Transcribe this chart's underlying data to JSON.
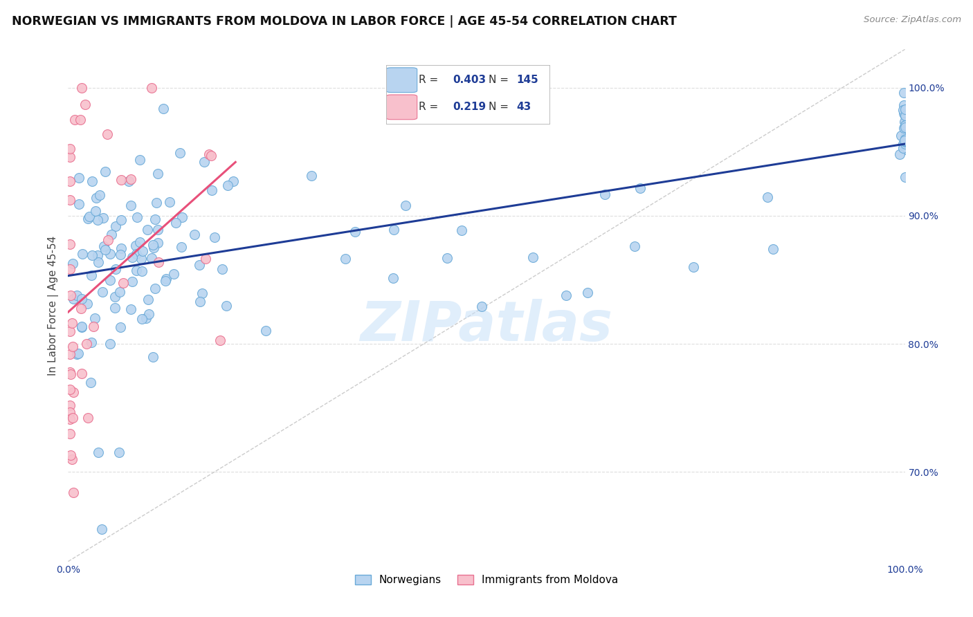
{
  "title": "NORWEGIAN VS IMMIGRANTS FROM MOLDOVA IN LABOR FORCE | AGE 45-54 CORRELATION CHART",
  "source": "Source: ZipAtlas.com",
  "ylabel": "In Labor Force | Age 45-54",
  "blue_R": 0.403,
  "blue_N": 145,
  "pink_R": 0.219,
  "pink_N": 43,
  "blue_color": "#b8d4f0",
  "blue_edge_color": "#6aaad8",
  "blue_line_color": "#1e3c96",
  "pink_color": "#f8c0cc",
  "pink_edge_color": "#e87090",
  "pink_line_color": "#e8507a",
  "legend_color": "#1e3c96",
  "watermark": "ZIPatlas",
  "background_color": "#ffffff",
  "grid_color": "#dddddd",
  "xmin": 0.0,
  "xmax": 1.0,
  "ymin": 0.63,
  "ymax": 1.03
}
